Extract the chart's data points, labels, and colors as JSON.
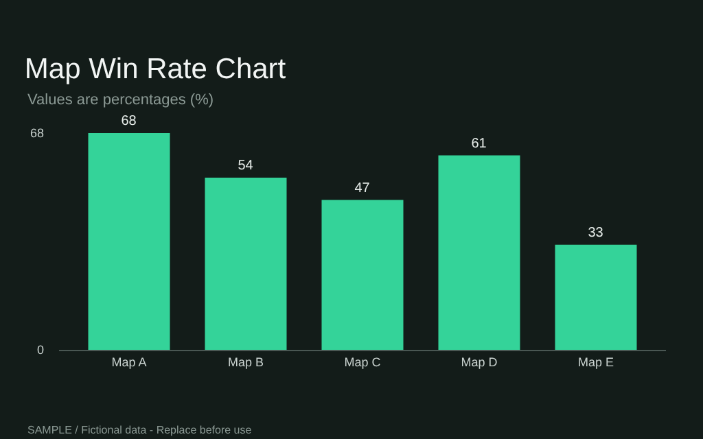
{
  "chart_data": {
    "type": "bar",
    "title": "Map Win Rate Chart",
    "subtitle": "Values are percentages (%)",
    "categories": [
      "Map A",
      "Map B",
      "Map C",
      "Map D",
      "Map E"
    ],
    "values": [
      68,
      54,
      47,
      61,
      33
    ],
    "color": "#34d399",
    "ylim": [
      0,
      68
    ],
    "yticks": [
      0,
      68
    ],
    "data_labels": true,
    "annotations": [
      "SAMPLE / Fictional data - Replace before use"
    ]
  }
}
